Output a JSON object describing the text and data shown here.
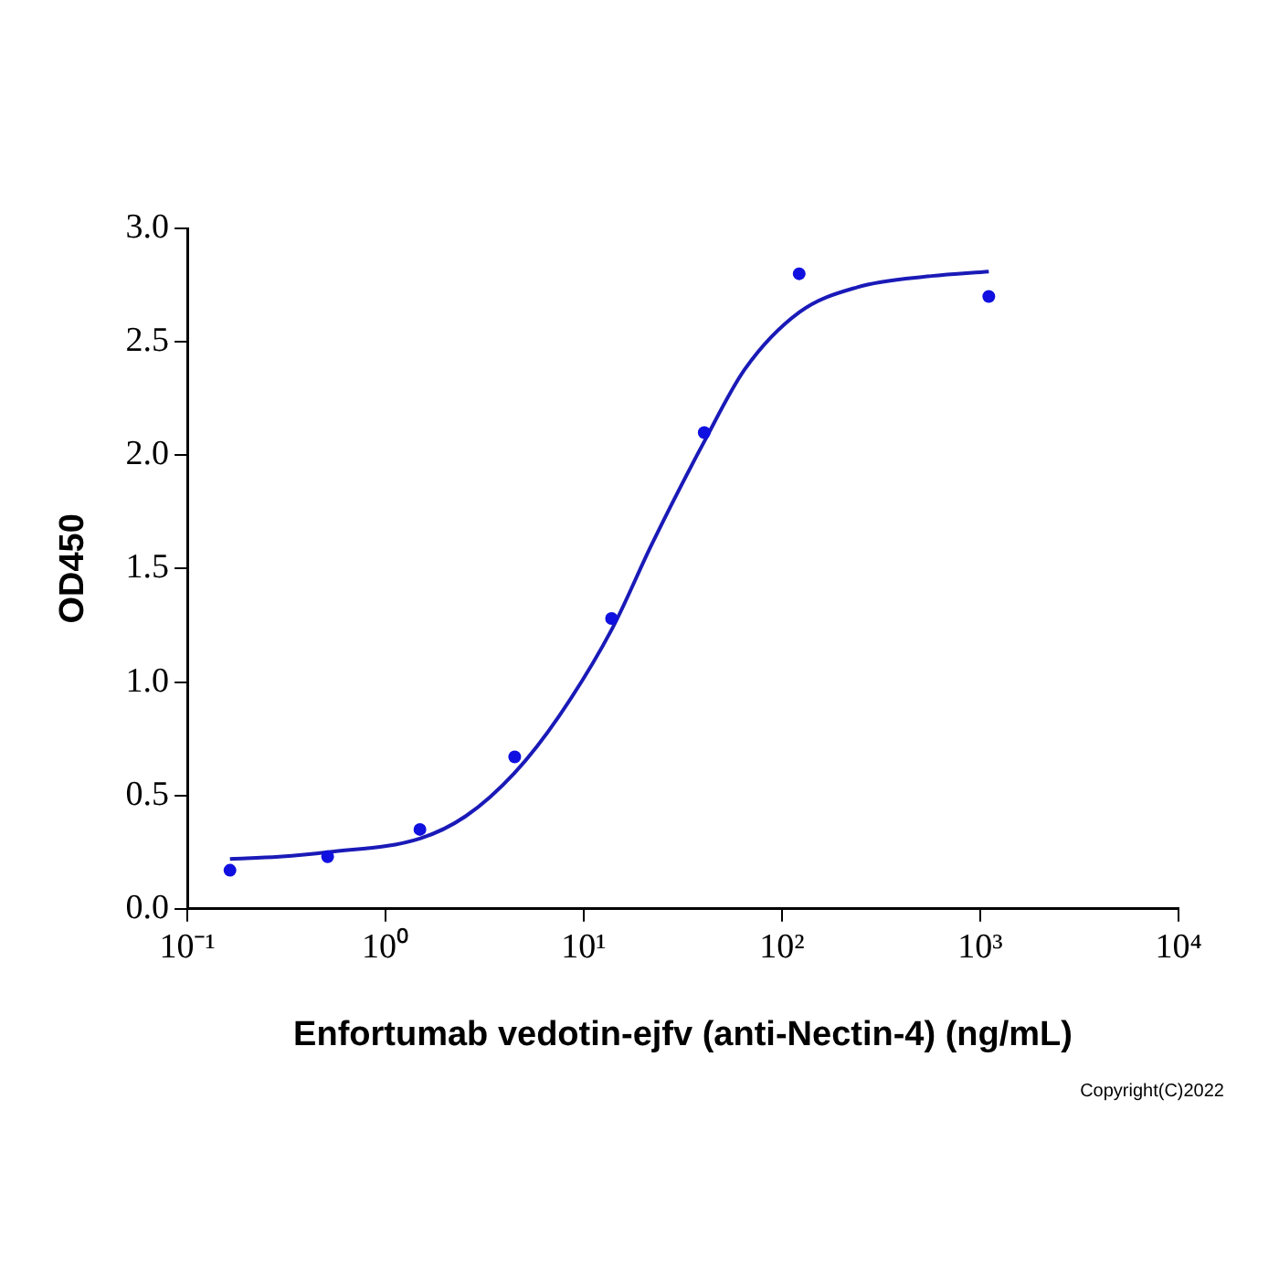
{
  "chart_data": {
    "type": "scatter",
    "xlabel": "Enfortumab vedotin-ejfv (anti-Nectin-4) (ng/mL)",
    "ylabel": "OD450",
    "log": "x",
    "xlim": [
      0.1,
      10000
    ],
    "xticks": [
      {
        "value": 0.1,
        "label": "10⁻¹"
      },
      {
        "value": 1,
        "label": "10⁰"
      },
      {
        "value": 10,
        "label": "10¹"
      },
      {
        "value": 100,
        "label": "10²"
      },
      {
        "value": 1000,
        "label": "10³"
      },
      {
        "value": 10000,
        "label": "10⁴"
      }
    ],
    "ylim": [
      0,
      3
    ],
    "yticks": [
      {
        "value": 0,
        "label": "0.0"
      },
      {
        "value": 0.5,
        "label": "0.5"
      },
      {
        "value": 1,
        "label": "1.0"
      },
      {
        "value": 1.5,
        "label": "1.5"
      },
      {
        "value": 2,
        "label": "2.0"
      },
      {
        "value": 2.5,
        "label": "2.5"
      },
      {
        "value": 3,
        "label": "3.0"
      }
    ],
    "grid": false,
    "legend": false,
    "marker": "circle",
    "series": [
      {
        "color": "#1010e0",
        "x": [
          0.164,
          0.51,
          1.49,
          4.48,
          13.8,
          40.5,
          122,
          1104
        ],
        "values": [
          0.17,
          0.23,
          0.35,
          0.67,
          1.28,
          2.1,
          2.8,
          2.7
        ]
      },
      {
        "type": "line",
        "color": "#1a1ab8",
        "marker": "none",
        "x": [
          0.164,
          0.29,
          0.51,
          1.49,
          2.55,
          4.48,
          7.5,
          13.8,
          22.1,
          40.5,
          65,
          122,
          238,
          565,
          1104
        ],
        "values": [
          0.22,
          0.23,
          0.25,
          0.31,
          0.41,
          0.6,
          0.85,
          1.23,
          1.61,
          2.06,
          2.38,
          2.63,
          2.74,
          2.79,
          2.81
        ]
      }
    ],
    "annotations": [
      "Copyright(C)2022"
    ]
  }
}
